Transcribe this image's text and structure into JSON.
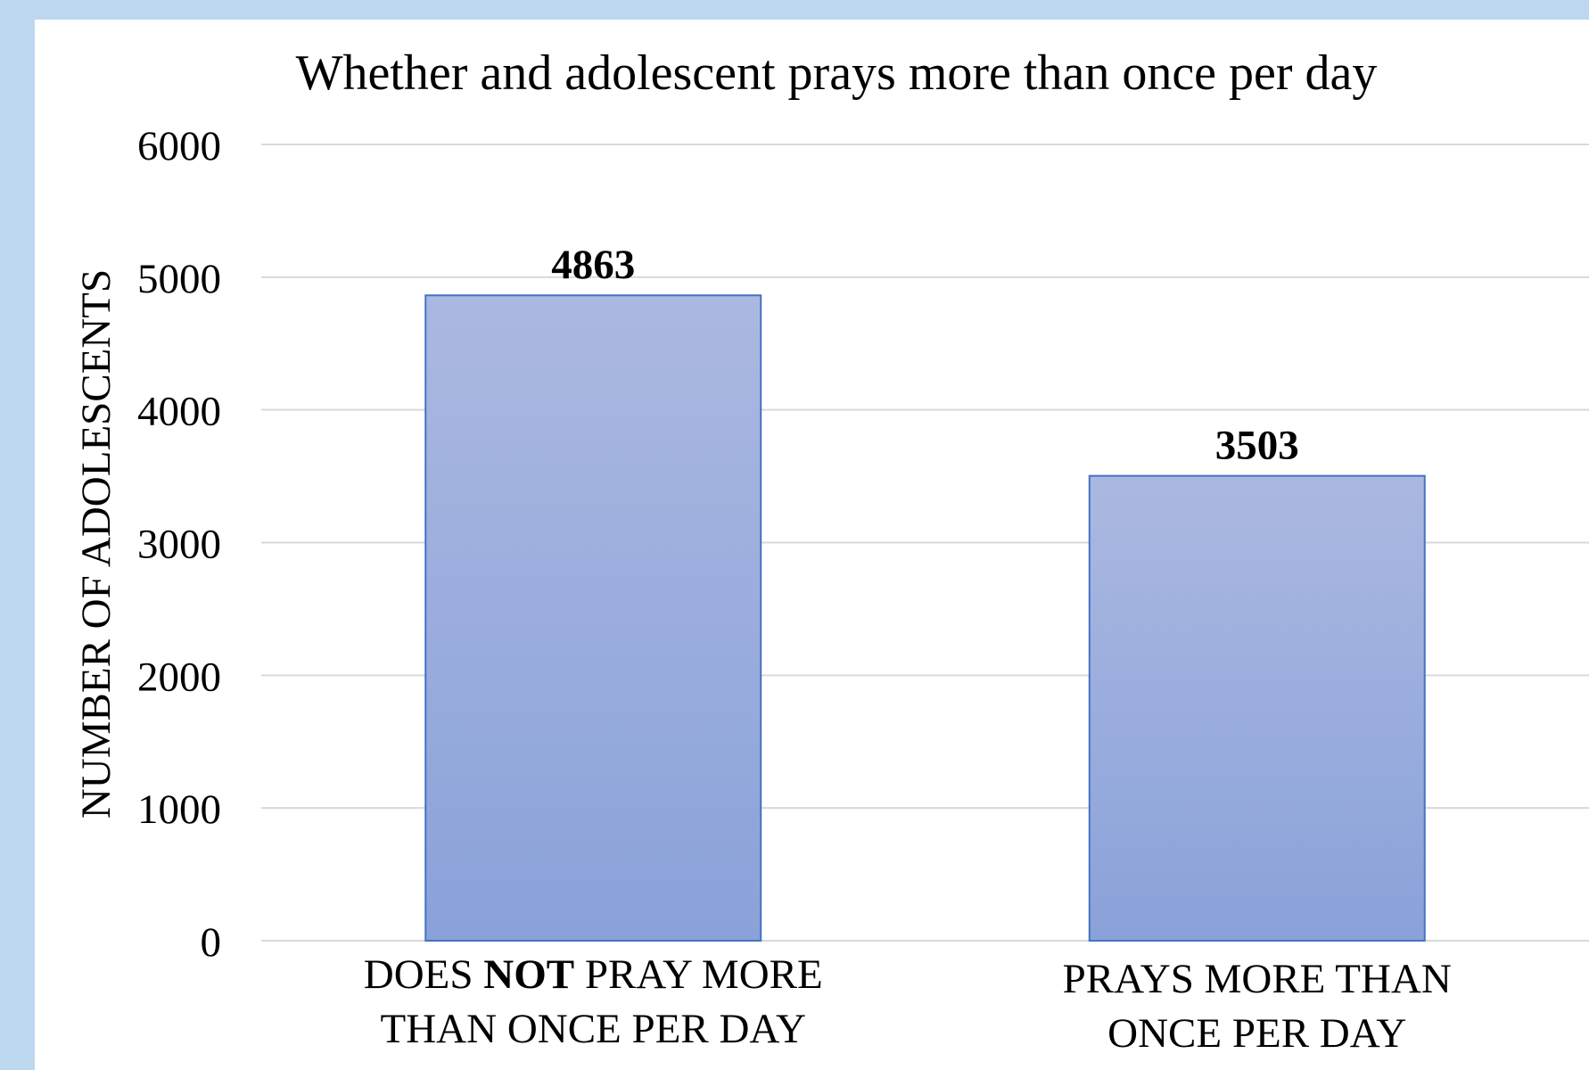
{
  "chart_data": {
    "type": "bar",
    "title": "Whether and adolescent prays more than once per day",
    "xlabel": "",
    "ylabel": "NUMBER OF ADOLESCENTS",
    "ylim": [
      0,
      6000
    ],
    "yticks": [
      0,
      1000,
      2000,
      3000,
      4000,
      5000,
      6000
    ],
    "grid": true,
    "legend": "none",
    "categories": [
      {
        "lines": [
          [
            {
              "text": "DOES ",
              "bold": false
            },
            {
              "text": "NOT",
              "bold": true
            },
            {
              "text": " PRAY MORE",
              "bold": false
            }
          ],
          [
            {
              "text": "THAN ONCE PER DAY",
              "bold": false
            }
          ]
        ]
      },
      {
        "lines": [
          [
            {
              "text": "PRAYS MORE THAN",
              "bold": false
            }
          ],
          [
            {
              "text": "ONCE PER DAY",
              "bold": false
            }
          ]
        ]
      }
    ],
    "values": [
      4863,
      3503
    ],
    "data_labels": [
      "4863",
      "3503"
    ],
    "colors": {
      "bar_top": "#abb8e1",
      "bar_bottom": "#8aa2d9",
      "bar_stroke": "#4472c4",
      "grid": "#d9d9d9",
      "frame": "#bdd7ee"
    }
  }
}
